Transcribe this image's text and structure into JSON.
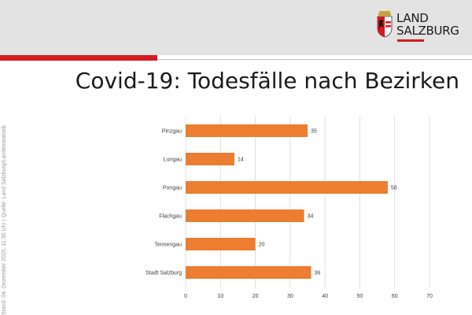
{
  "header": {
    "logo_line1": "LAND",
    "logo_line2": "SALZBURG",
    "logo_icon": "salzburg-coat-of-arms-icon"
  },
  "title": "Covid-19: Todesfälle nach Bezirken",
  "source_note": "Stand: 04. Dezember 2020, 11:30 Uhr  |  Quelle: Land Salzburg/Landesstatistik",
  "colors": {
    "bar": "#ed7d31",
    "accent_red": "#d71920",
    "header_bg": "#e3e3e3",
    "grid": "#d9d9d9"
  },
  "chart_data": {
    "type": "bar",
    "orientation": "horizontal",
    "title": "Covid-19: Todesfälle nach Bezirken",
    "categories": [
      "Pinzgau",
      "Lungau",
      "Pongau",
      "Flachgau",
      "Tennengau",
      "Stadt Salzburg"
    ],
    "values": [
      35,
      14,
      58,
      34,
      20,
      36
    ],
    "xlim": [
      0,
      70
    ],
    "xticks": [
      0,
      10,
      20,
      30,
      40,
      50,
      60,
      70
    ],
    "grid": true,
    "legend": "none"
  }
}
